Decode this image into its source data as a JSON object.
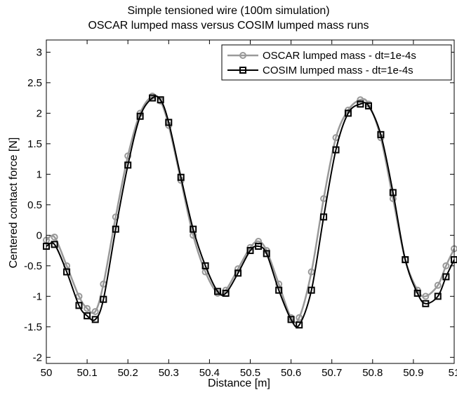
{
  "chart_data": {
    "type": "line",
    "title": [
      "Simple tensioned wire (100m simulation)",
      "OSCAR lumped mass versus COSIM lumped mass runs"
    ],
    "xlabel": "Distance [m]",
    "ylabel": "Centered contact force [N]",
    "xlim": [
      50,
      51
    ],
    "ylim": [
      -2.1,
      3.2
    ],
    "xticks": [
      50,
      50.1,
      50.2,
      50.3,
      50.4,
      50.5,
      50.6,
      50.7,
      50.8,
      50.9,
      51
    ],
    "xtick_labels": [
      "50",
      "50.1",
      "50.2",
      "50.3",
      "50.4",
      "50.5",
      "50.6",
      "50.7",
      "50.8",
      "50.9",
      "51"
    ],
    "yticks": [
      -2,
      -1.5,
      -1,
      -0.5,
      0,
      0.5,
      1,
      1.5,
      2,
      2.5,
      3
    ],
    "ytick_labels": [
      "-2",
      "-1.5",
      "-1",
      "-0.5",
      "0",
      "0.5",
      "1",
      "1.5",
      "2",
      "2.5",
      "3"
    ],
    "grid": false,
    "legend_position": "top-right",
    "series": [
      {
        "name": "OSCAR lumped mass - dt=1e-4s",
        "color": "#999999",
        "marker": "circle",
        "x": [
          50.0,
          50.02,
          50.05,
          50.08,
          50.1,
          50.12,
          50.14,
          50.17,
          50.2,
          50.23,
          50.26,
          50.28,
          50.3,
          50.33,
          50.36,
          50.39,
          50.42,
          50.44,
          50.47,
          50.5,
          50.52,
          50.54,
          50.57,
          50.6,
          50.62,
          50.65,
          50.68,
          50.71,
          50.74,
          50.77,
          50.79,
          50.82,
          50.85,
          50.88,
          50.91,
          50.93,
          50.96,
          50.98,
          51.0
        ],
        "y": [
          -0.08,
          -0.03,
          -0.5,
          -1.0,
          -1.2,
          -1.25,
          -0.8,
          0.3,
          1.3,
          2.0,
          2.28,
          2.2,
          1.8,
          0.9,
          0.0,
          -0.6,
          -0.95,
          -0.9,
          -0.55,
          -0.2,
          -0.1,
          -0.25,
          -0.8,
          -1.35,
          -1.35,
          -0.6,
          0.6,
          1.6,
          2.05,
          2.22,
          2.15,
          1.6,
          0.6,
          -0.4,
          -0.9,
          -1.0,
          -0.82,
          -0.5,
          -0.22
        ]
      },
      {
        "name": "COSIM lumped mass - dt=1e-4s",
        "color": "#000000",
        "marker": "square",
        "x": [
          50.0,
          50.02,
          50.05,
          50.08,
          50.1,
          50.12,
          50.14,
          50.17,
          50.2,
          50.23,
          50.26,
          50.28,
          50.3,
          50.33,
          50.36,
          50.39,
          50.42,
          50.44,
          50.47,
          50.5,
          50.52,
          50.54,
          50.57,
          50.6,
          50.62,
          50.65,
          50.68,
          50.71,
          50.74,
          50.77,
          50.79,
          50.82,
          50.85,
          50.88,
          50.91,
          50.93,
          50.96,
          50.98,
          51.0
        ],
        "y": [
          -0.18,
          -0.15,
          -0.6,
          -1.15,
          -1.32,
          -1.38,
          -1.05,
          0.1,
          1.15,
          1.95,
          2.25,
          2.22,
          1.85,
          0.95,
          0.1,
          -0.5,
          -0.92,
          -0.95,
          -0.62,
          -0.25,
          -0.18,
          -0.3,
          -0.9,
          -1.38,
          -1.47,
          -0.9,
          0.3,
          1.4,
          2.0,
          2.15,
          2.12,
          1.65,
          0.7,
          -0.4,
          -0.95,
          -1.12,
          -1.0,
          -0.68,
          -0.4
        ]
      }
    ]
  }
}
